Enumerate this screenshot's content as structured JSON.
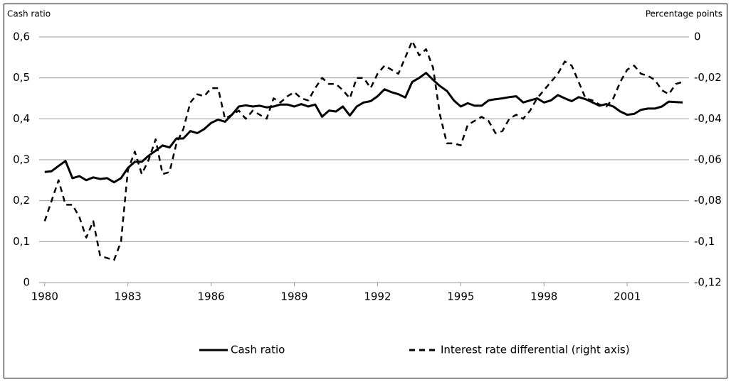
{
  "chart_data": {
    "type": "line",
    "y_axis_label": "Cash ratio",
    "y2_axis_label": "Percentage points",
    "x": [
      1980,
      1980.25,
      1980.5,
      1980.75,
      1981,
      1981.25,
      1981.5,
      1981.75,
      1982,
      1982.25,
      1982.5,
      1982.75,
      1983,
      1983.25,
      1983.5,
      1983.75,
      1984,
      1984.25,
      1984.5,
      1984.75,
      1985,
      1985.25,
      1985.5,
      1985.75,
      1986,
      1986.25,
      1986.5,
      1986.75,
      1987,
      1987.25,
      1987.5,
      1987.75,
      1988,
      1988.25,
      1988.5,
      1988.75,
      1989,
      1989.25,
      1989.5,
      1989.75,
      1990,
      1990.25,
      1990.5,
      1990.75,
      1991,
      1991.25,
      1991.5,
      1991.75,
      1992,
      1992.25,
      1992.5,
      1992.75,
      1993,
      1993.25,
      1993.5,
      1993.75,
      1994,
      1994.25,
      1994.5,
      1994.75,
      1995,
      1995.25,
      1995.5,
      1995.75,
      1996,
      1996.25,
      1996.5,
      1996.75,
      1997,
      1997.25,
      1997.5,
      1997.75,
      1998,
      1998.25,
      1998.5,
      1998.75,
      1999,
      1999.25,
      1999.5,
      1999.75,
      2000,
      2000.25,
      2000.5,
      2000.75,
      2001,
      2001.25,
      2001.5,
      2001.75,
      2002,
      2002.25,
      2002.5,
      2002.75,
      2003
    ],
    "series": [
      {
        "name": "Cash ratio",
        "color": "#000000",
        "dash": "solid",
        "axis": "y",
        "values": [
          0.27,
          0.272,
          0.285,
          0.297,
          0.255,
          0.26,
          0.25,
          0.257,
          0.253,
          0.255,
          0.245,
          0.255,
          0.28,
          0.295,
          0.295,
          0.31,
          0.322,
          0.335,
          0.33,
          0.352,
          0.352,
          0.37,
          0.365,
          0.375,
          0.39,
          0.398,
          0.393,
          0.41,
          0.43,
          0.433,
          0.43,
          0.432,
          0.428,
          0.43,
          0.435,
          0.435,
          0.43,
          0.436,
          0.43,
          0.435,
          0.405,
          0.42,
          0.418,
          0.43,
          0.408,
          0.43,
          0.44,
          0.443,
          0.455,
          0.472,
          0.465,
          0.46,
          0.452,
          0.49,
          0.5,
          0.512,
          0.495,
          0.48,
          0.468,
          0.445,
          0.43,
          0.438,
          0.432,
          0.432,
          0.445,
          0.448,
          0.45,
          0.453,
          0.455,
          0.44,
          0.445,
          0.45,
          0.44,
          0.445,
          0.458,
          0.45,
          0.443,
          0.453,
          0.448,
          0.44,
          0.432,
          0.436,
          0.43,
          0.418,
          0.41,
          0.412,
          0.422,
          0.425,
          0.425,
          0.43,
          0.442,
          0.441,
          0.44
        ]
      },
      {
        "name": "Interest rate differential (right axis)",
        "color": "#000000",
        "dash": "dashed",
        "axis": "y2",
        "values": [
          -0.09,
          -0.08,
          -0.07,
          -0.082,
          -0.082,
          -0.088,
          -0.098,
          -0.09,
          -0.107,
          -0.108,
          -0.109,
          -0.1,
          -0.065,
          -0.056,
          -0.067,
          -0.06,
          -0.05,
          -0.067,
          -0.066,
          -0.052,
          -0.045,
          -0.032,
          -0.028,
          -0.029,
          -0.025,
          -0.025,
          -0.04,
          -0.038,
          -0.036,
          -0.04,
          -0.036,
          -0.038,
          -0.04,
          -0.03,
          -0.032,
          -0.029,
          -0.027,
          -0.03,
          -0.031,
          -0.025,
          -0.02,
          -0.023,
          -0.023,
          -0.026,
          -0.03,
          -0.02,
          -0.02,
          -0.025,
          -0.018,
          -0.014,
          -0.016,
          -0.018,
          -0.01,
          -0.002,
          -0.009,
          -0.006,
          -0.015,
          -0.038,
          -0.052,
          -0.052,
          -0.053,
          -0.043,
          -0.041,
          -0.039,
          -0.041,
          -0.047,
          -0.046,
          -0.04,
          -0.038,
          -0.04,
          -0.036,
          -0.03,
          -0.026,
          -0.022,
          -0.018,
          -0.012,
          -0.014,
          -0.022,
          -0.03,
          -0.031,
          -0.033,
          -0.034,
          -0.03,
          -0.022,
          -0.016,
          -0.014,
          -0.018,
          -0.019,
          -0.021,
          -0.026,
          -0.028,
          -0.023,
          -0.022
        ]
      }
    ],
    "xlim": [
      1979.8,
      2003.1
    ],
    "xticks": [
      1980,
      1983,
      1986,
      1989,
      1992,
      1995,
      1998,
      2001
    ],
    "ylim": [
      0,
      0.6
    ],
    "yticks": [
      0,
      {
        "value": 0.1,
        "label": "0,1"
      },
      {
        "value": 0.2,
        "label": "0,2"
      },
      {
        "value": 0.3,
        "label": "0,3"
      },
      {
        "value": 0.4,
        "label": "0,4"
      },
      {
        "value": 0.5,
        "label": "0,5"
      },
      {
        "value": 0.6,
        "label": "0,6"
      }
    ],
    "y2lim": [
      -0.12,
      0
    ],
    "y2ticks": [
      {
        "value": -0.12,
        "label": "-0,12"
      },
      {
        "value": -0.1,
        "label": "-0,1"
      },
      {
        "value": -0.08,
        "label": "-0,08"
      },
      {
        "value": -0.06,
        "label": "-0,06"
      },
      {
        "value": -0.04,
        "label": "-0,04"
      },
      {
        "value": -0.02,
        "label": "-0,02"
      },
      0
    ],
    "grid": true,
    "legend": "bottom"
  }
}
